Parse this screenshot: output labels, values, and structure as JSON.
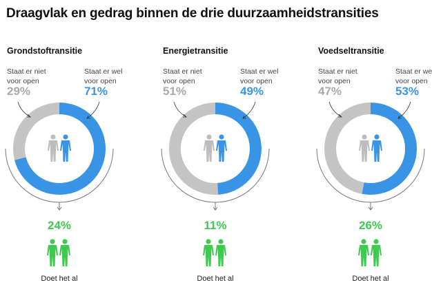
{
  "title": "Draagvlak en gedrag binnen de drie duurzaamheidstransities",
  "colors": {
    "open": "#3a94e6",
    "not_open": "#c4c4c4",
    "doing": "#3ec94f",
    "person_gray": "#bdbdbd"
  },
  "chart_data": {
    "type": "pie",
    "title": "Draagvlak en gedrag binnen de drie duurzaamheidstransities",
    "charts": [
      {
        "name": "Grondstoftransitie",
        "not_open_label": "Staat er niet voor open",
        "not_open": 29,
        "not_open_text": "29%",
        "open_label": "Staat er wel voor open",
        "open": 71,
        "open_text": "71%",
        "doing_label": "Doet het al",
        "doing": 24,
        "doing_text": "24%"
      },
      {
        "name": "Energietransitie",
        "not_open_label": "Staat er niet voor open",
        "not_open": 51,
        "not_open_text": "51%",
        "open_label": "Staat er wel voor open",
        "open": 49,
        "open_text": "49%",
        "doing_label": "Doet het al",
        "doing": 11,
        "doing_text": "11%"
      },
      {
        "name": "Voedseltransitie",
        "not_open_label": "Staat er niet voor open",
        "not_open": 47,
        "not_open_text": "47%",
        "open_label": "Staat er wel voor open",
        "open": 53,
        "open_text": "53%",
        "doing_label": "Doet het al",
        "doing": 26,
        "doing_text": "26%"
      }
    ]
  }
}
